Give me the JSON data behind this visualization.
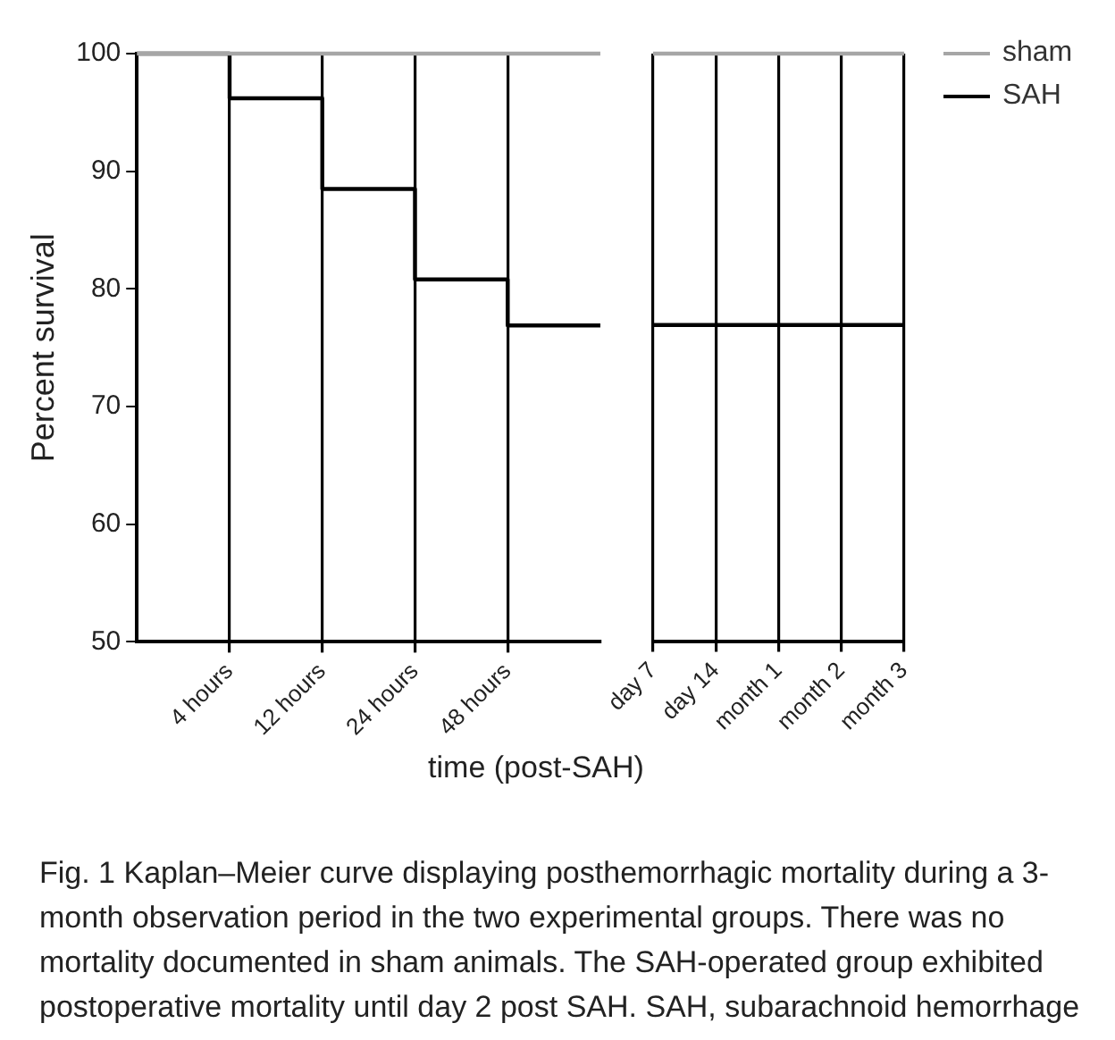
{
  "chart_data": [
    {
      "type": "step",
      "xlabel": "time (post-SAH)",
      "ylabel": "Percent survival",
      "ylim": [
        50,
        100
      ],
      "categories": [
        null,
        "4 hours",
        "12 hours",
        "24 hours",
        "48 hours",
        null
      ],
      "yticks": [
        50,
        60,
        70,
        80,
        90,
        100
      ],
      "grid": "x",
      "marker": "none",
      "series": [
        {
          "color": "#a6a6a6",
          "values": [
            100,
            100,
            100,
            100,
            100,
            100
          ]
        },
        {
          "color": "#000000",
          "values": [
            100,
            96.2,
            88.5,
            80.8,
            76.9,
            76.9
          ]
        }
      ],
      "annotations": [
        "Fig. 1 Kaplan–Meier curve displaying posthemorrhagic mortality during a 3-month observation period in the two experimental groups. There was no mortality documented in sham animals. The SAH-operated group exhibited postoperative mortality until day 2 post SAH. SAH, subarachnoid hemorrhage"
      ]
    },
    {
      "type": "step",
      "ylim": [
        50,
        100
      ],
      "categories": [
        "day 7",
        "day 14",
        "month 1",
        "month 2",
        "month 3"
      ],
      "yticks": [
        50,
        60,
        70,
        80,
        90,
        100
      ],
      "grid": "x",
      "marker": "none",
      "tick_labels": "x",
      "legend": "top right",
      "series": [
        {
          "name": "sham",
          "color": "#a6a6a6",
          "values": [
            100,
            100,
            100,
            100,
            100
          ]
        },
        {
          "name": "SAH",
          "color": "#000000",
          "values": [
            76.9,
            76.9,
            76.9,
            76.9,
            76.9
          ]
        }
      ]
    }
  ]
}
